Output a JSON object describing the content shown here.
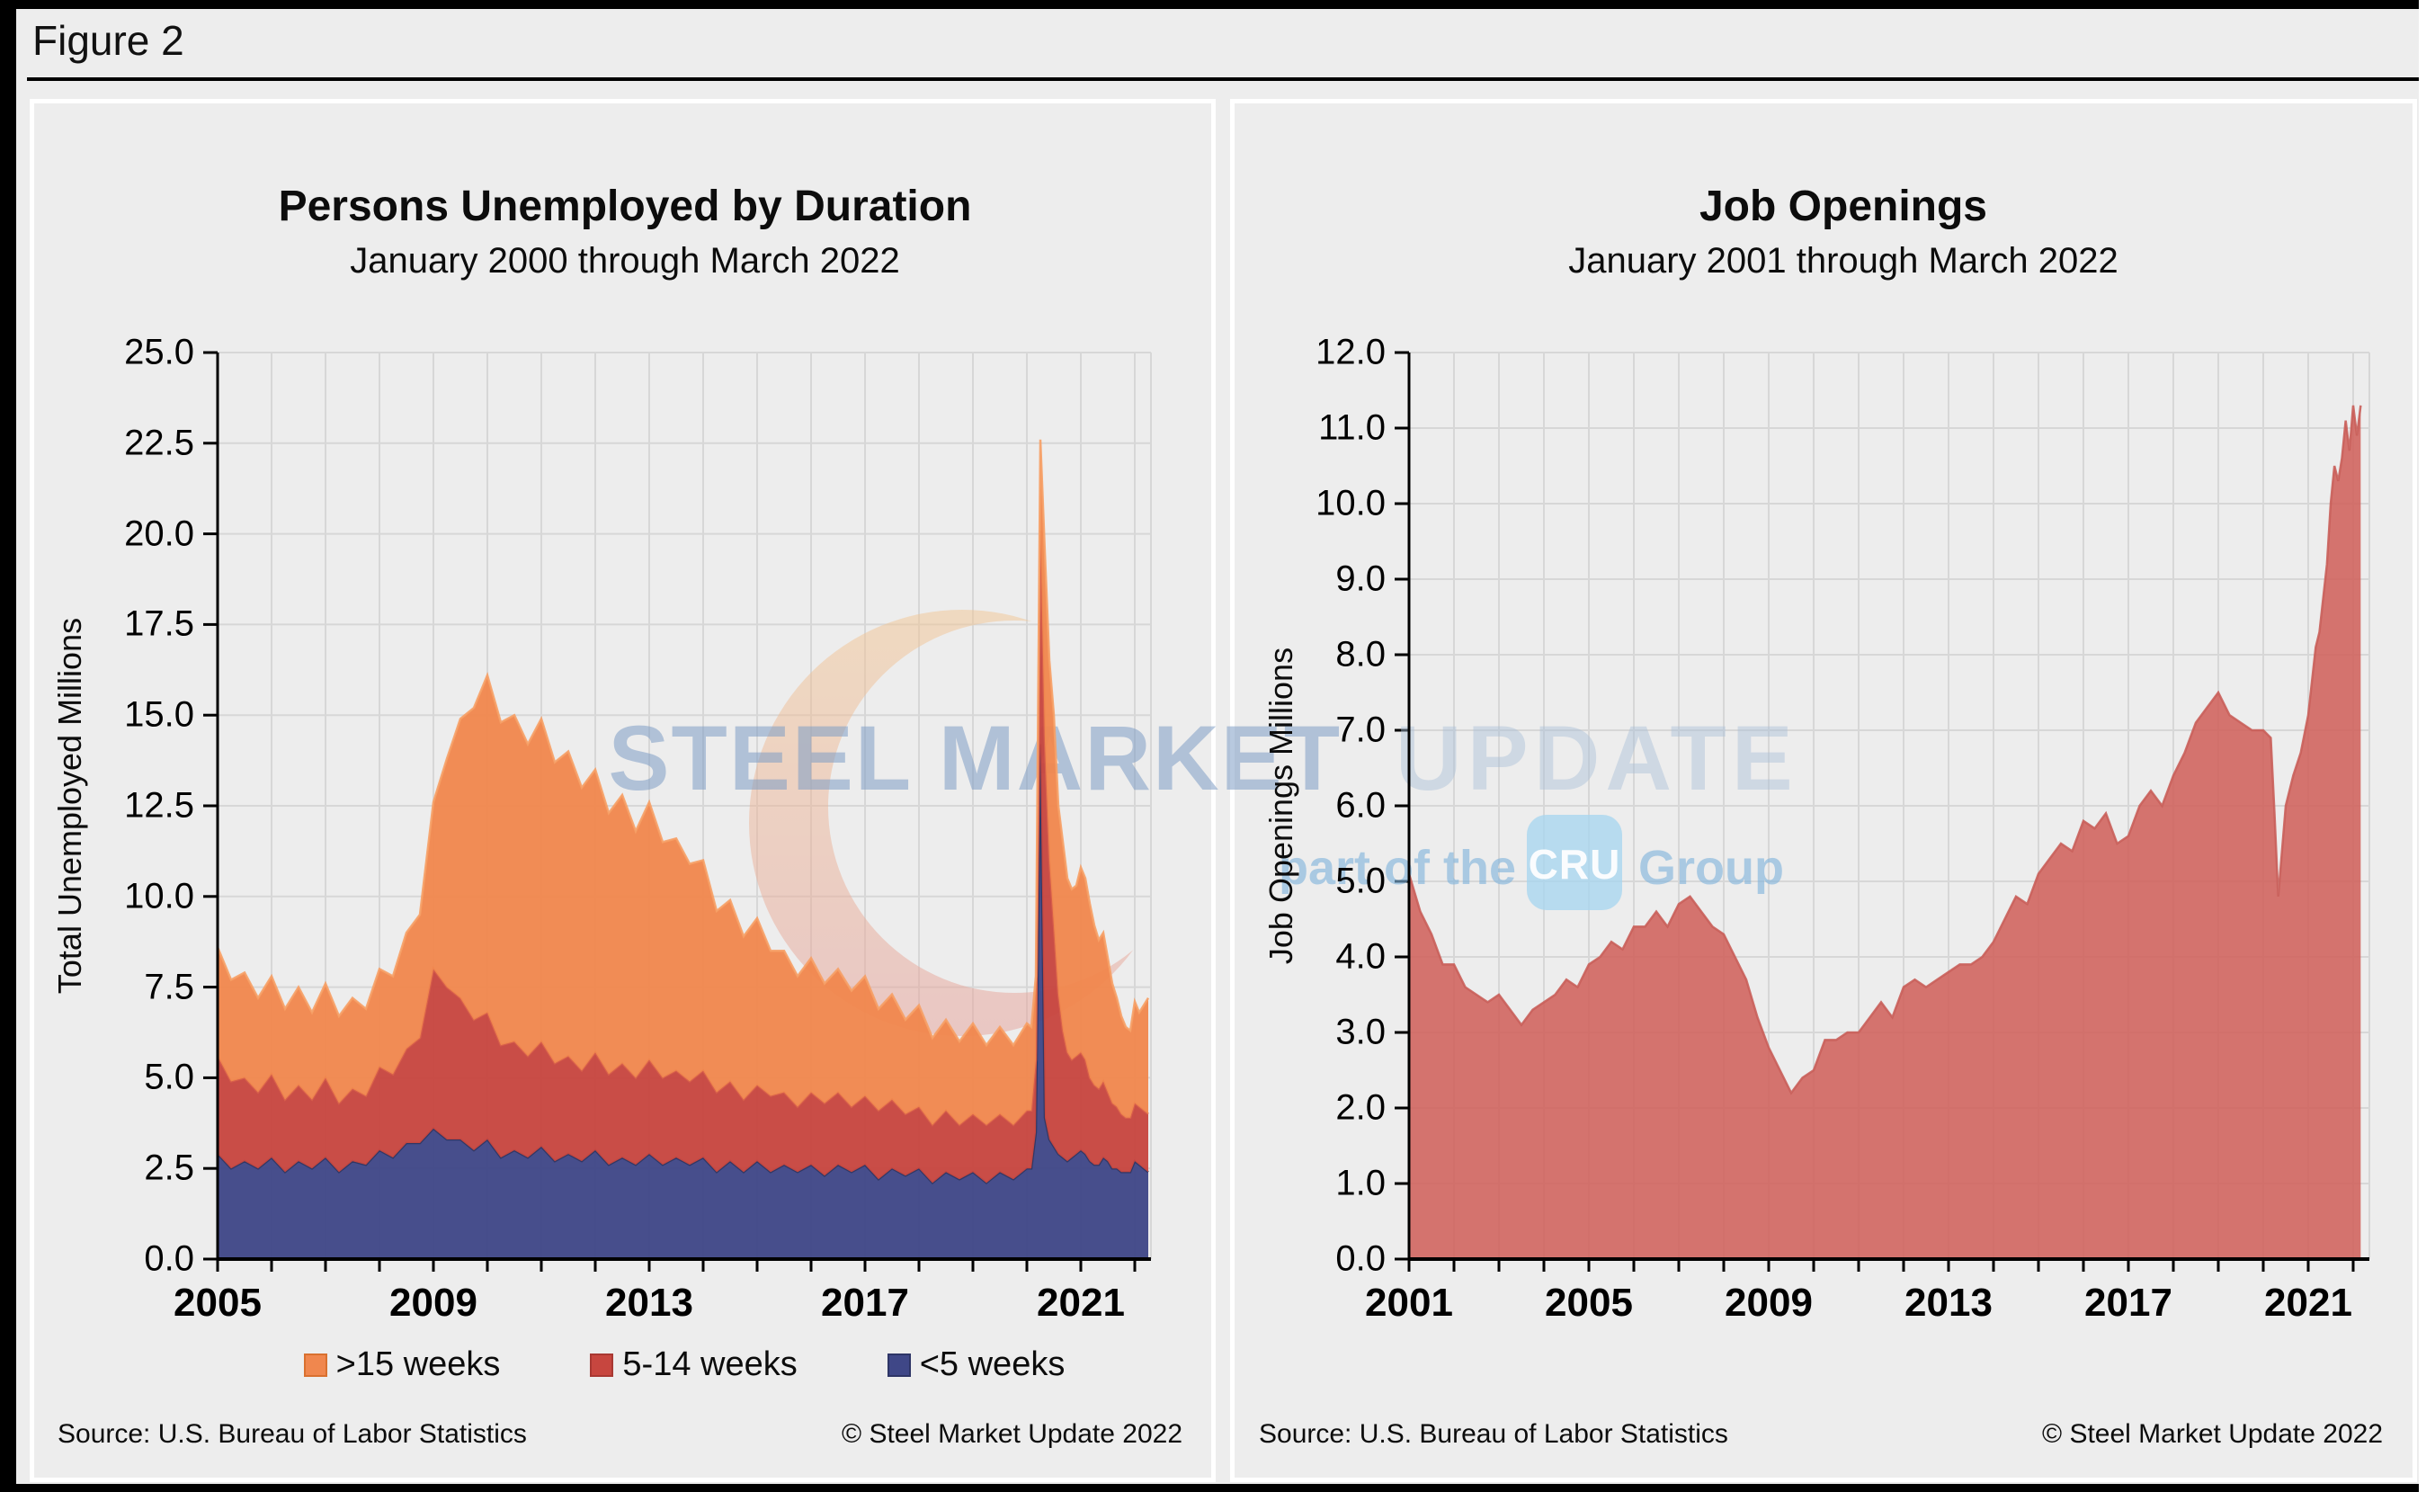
{
  "page": {
    "figure_label": "Figure 2"
  },
  "footer": {
    "source": "Source: U.S. Bureau  of Labor Statistics",
    "copyright": "© Steel Market Update 2022"
  },
  "watermark": {
    "main_strong": "STEEL MARKET",
    "main_light": "UPDATE",
    "tagline_prefix": "part of the",
    "badge": "CRU",
    "tagline_suffix": "Group",
    "main_strong_color": "#7E9CC5",
    "main_light_color": "#A9BED8",
    "tagline_color": "#7FB3DC",
    "badge_color": "#A9D6EF",
    "crescent_top_color": "#F2C795",
    "crescent_bottom_color": "#E7A29B"
  },
  "chart_data": [
    {
      "type": "area",
      "stacked": true,
      "title": "Persons Unemployed by Duration",
      "subtitle": "January 2000 through March 2022",
      "y_axis_title": "Total Unemployed Millions",
      "ylim": [
        0,
        25
      ],
      "y_tick_step": 2.5,
      "y_tick_labels": [
        "0.0",
        "2.5",
        "5.0",
        "7.5",
        "10.0",
        "12.5",
        "15.0",
        "17.5",
        "20.0",
        "22.5",
        "25.0"
      ],
      "x_tick_labels": [
        "2005",
        "2009",
        "2013",
        "2017",
        "2021"
      ],
      "x_tick_years": [
        2005,
        2009,
        2013,
        2017,
        2021
      ],
      "x_range": [
        2005,
        2022.3
      ],
      "grid": true,
      "grid_color": "#D7D7D7",
      "legend_position": "bottom",
      "legend": [
        {
          "label": ">15 weeks",
          "color": "#F0874E",
          "border": "#D9702F"
        },
        {
          "label": "5-14 weeks",
          "color": "#C7463F",
          "border": "#A83832"
        },
        {
          "label": "<5 weeks",
          "color": "#3F4787",
          "border": "#2E3566"
        }
      ],
      "x": [
        2005,
        2005.25,
        2005.5,
        2005.75,
        2006,
        2006.25,
        2006.5,
        2006.75,
        2007,
        2007.25,
        2007.5,
        2007.75,
        2008,
        2008.25,
        2008.5,
        2008.75,
        2009,
        2009.25,
        2009.5,
        2009.75,
        2010,
        2010.25,
        2010.5,
        2010.75,
        2011,
        2011.25,
        2011.5,
        2011.75,
        2012,
        2012.25,
        2012.5,
        2012.75,
        2013,
        2013.25,
        2013.5,
        2013.75,
        2014,
        2014.25,
        2014.5,
        2014.75,
        2015,
        2015.25,
        2015.5,
        2015.75,
        2016,
        2016.25,
        2016.5,
        2016.75,
        2017,
        2017.25,
        2017.5,
        2017.75,
        2018,
        2018.25,
        2018.5,
        2018.75,
        2019,
        2019.25,
        2019.5,
        2019.75,
        2020,
        2020.083,
        2020.167,
        2020.25,
        2020.333,
        2020.417,
        2020.5,
        2020.583,
        2020.667,
        2020.75,
        2020.833,
        2020.917,
        2021,
        2021.083,
        2021.167,
        2021.25,
        2021.333,
        2021.417,
        2021.5,
        2021.583,
        2021.667,
        2021.75,
        2021.833,
        2021.917,
        2022,
        2022.083,
        2022.25
      ],
      "series": [
        {
          "name": "<5 weeks",
          "color": "#3F4787",
          "edge": "#2F3560",
          "values": [
            2.9,
            2.5,
            2.7,
            2.5,
            2.8,
            2.4,
            2.7,
            2.5,
            2.8,
            2.4,
            2.7,
            2.6,
            3.0,
            2.8,
            3.2,
            3.2,
            3.6,
            3.3,
            3.3,
            3.0,
            3.3,
            2.8,
            3.0,
            2.8,
            3.1,
            2.7,
            2.9,
            2.7,
            3.0,
            2.6,
            2.8,
            2.6,
            2.9,
            2.6,
            2.8,
            2.6,
            2.8,
            2.4,
            2.7,
            2.4,
            2.7,
            2.4,
            2.6,
            2.4,
            2.6,
            2.3,
            2.6,
            2.4,
            2.6,
            2.2,
            2.5,
            2.3,
            2.5,
            2.1,
            2.4,
            2.2,
            2.4,
            2.1,
            2.4,
            2.2,
            2.5,
            2.5,
            3.5,
            14.2,
            3.9,
            3.3,
            3.1,
            2.9,
            2.8,
            2.7,
            2.8,
            2.9,
            3.0,
            2.9,
            2.7,
            2.6,
            2.6,
            2.8,
            2.7,
            2.5,
            2.5,
            2.4,
            2.4,
            2.4,
            2.7,
            2.6,
            2.4
          ]
        },
        {
          "name": "5-14 weeks",
          "color": "#C7463F",
          "edge": "#D8604A",
          "values": [
            2.7,
            2.4,
            2.3,
            2.1,
            2.3,
            2.0,
            2.1,
            1.9,
            2.2,
            1.9,
            2.0,
            1.9,
            2.3,
            2.3,
            2.6,
            2.9,
            4.4,
            4.2,
            3.9,
            3.6,
            3.5,
            3.1,
            3.0,
            2.8,
            2.9,
            2.7,
            2.7,
            2.5,
            2.7,
            2.5,
            2.6,
            2.4,
            2.6,
            2.4,
            2.4,
            2.3,
            2.4,
            2.2,
            2.2,
            2.0,
            2.1,
            2.1,
            2.0,
            1.8,
            2.0,
            2.0,
            2.0,
            1.8,
            1.9,
            1.9,
            1.9,
            1.7,
            1.7,
            1.6,
            1.7,
            1.5,
            1.6,
            1.6,
            1.6,
            1.5,
            1.6,
            1.6,
            2.0,
            5.9,
            10.4,
            7.7,
            6.1,
            4.4,
            3.5,
            3.0,
            2.7,
            2.7,
            2.7,
            2.6,
            2.3,
            2.2,
            2.1,
            2.1,
            1.9,
            1.8,
            1.7,
            1.6,
            1.5,
            1.5,
            1.6,
            1.6,
            1.6
          ]
        },
        {
          "name": ">15 weeks",
          "color": "#F0874E",
          "edge": "#F6A066",
          "values": [
            3.0,
            2.8,
            2.9,
            2.6,
            2.7,
            2.5,
            2.7,
            2.4,
            2.6,
            2.4,
            2.5,
            2.4,
            2.7,
            2.7,
            3.2,
            3.4,
            4.6,
            6.3,
            7.7,
            8.6,
            9.3,
            8.9,
            9.0,
            8.6,
            8.9,
            8.3,
            8.4,
            7.8,
            7.8,
            7.2,
            7.4,
            6.8,
            7.1,
            6.5,
            6.4,
            6.0,
            5.8,
            5.0,
            5.0,
            4.5,
            4.6,
            4.0,
            3.9,
            3.6,
            3.7,
            3.3,
            3.4,
            3.2,
            3.3,
            2.8,
            2.9,
            2.6,
            2.8,
            2.4,
            2.5,
            2.3,
            2.5,
            2.2,
            2.4,
            2.2,
            2.4,
            2.3,
            2.3,
            2.5,
            5.2,
            5.5,
            5.8,
            5.2,
            5.2,
            4.8,
            4.7,
            4.7,
            5.1,
            5.0,
            4.8,
            4.4,
            4.1,
            4.1,
            3.7,
            3.3,
            3.0,
            2.7,
            2.5,
            2.4,
            2.8,
            2.6,
            3.2
          ]
        }
      ]
    },
    {
      "type": "area",
      "stacked": false,
      "title": "Job Openings",
      "subtitle": "January 2001 through March 2022",
      "y_axis_title": "Job Openings Millions",
      "ylim": [
        0,
        12
      ],
      "y_tick_step": 1,
      "y_tick_labels": [
        "0.0",
        "1.0",
        "2.0",
        "3.0",
        "4.0",
        "5.0",
        "6.0",
        "7.0",
        "8.0",
        "9.0",
        "10.0",
        "11.0",
        "12.0"
      ],
      "x_tick_labels": [
        "2001",
        "2005",
        "2009",
        "2013",
        "2017",
        "2021"
      ],
      "x_tick_years": [
        2001,
        2005,
        2009,
        2013,
        2017,
        2021
      ],
      "x_range": [
        2001,
        2022.35
      ],
      "grid": true,
      "grid_color": "#D7D7D7",
      "legend": [],
      "x": [
        2001,
        2001.25,
        2001.5,
        2001.75,
        2002,
        2002.25,
        2002.5,
        2002.75,
        2003,
        2003.25,
        2003.5,
        2003.75,
        2004,
        2004.25,
        2004.5,
        2004.75,
        2005,
        2005.25,
        2005.5,
        2005.75,
        2006,
        2006.25,
        2006.5,
        2006.75,
        2007,
        2007.25,
        2007.5,
        2007.75,
        2008,
        2008.25,
        2008.5,
        2008.75,
        2009,
        2009.25,
        2009.5,
        2009.75,
        2010,
        2010.25,
        2010.5,
        2010.75,
        2011,
        2011.25,
        2011.5,
        2011.75,
        2012,
        2012.25,
        2012.5,
        2012.75,
        2013,
        2013.25,
        2013.5,
        2013.75,
        2014,
        2014.25,
        2014.5,
        2014.75,
        2015,
        2015.25,
        2015.5,
        2015.75,
        2016,
        2016.25,
        2016.5,
        2016.75,
        2017,
        2017.25,
        2017.5,
        2017.75,
        2018,
        2018.25,
        2018.5,
        2018.75,
        2019,
        2019.25,
        2019.5,
        2019.75,
        2020,
        2020.167,
        2020.25,
        2020.333,
        2020.5,
        2020.667,
        2020.833,
        2021,
        2021.167,
        2021.25,
        2021.417,
        2021.5,
        2021.583,
        2021.667,
        2021.75,
        2021.833,
        2021.917,
        2022,
        2022.083,
        2022.167
      ],
      "series": [
        {
          "name": "Job Openings",
          "color": "#D0655F",
          "edge": "#C95F5A",
          "values": [
            5.1,
            4.6,
            4.3,
            3.9,
            3.9,
            3.6,
            3.5,
            3.4,
            3.5,
            3.3,
            3.1,
            3.3,
            3.4,
            3.5,
            3.7,
            3.6,
            3.9,
            4.0,
            4.2,
            4.1,
            4.4,
            4.4,
            4.6,
            4.4,
            4.7,
            4.8,
            4.6,
            4.4,
            4.3,
            4.0,
            3.7,
            3.2,
            2.8,
            2.5,
            2.2,
            2.4,
            2.5,
            2.9,
            2.9,
            3.0,
            3.0,
            3.2,
            3.4,
            3.2,
            3.6,
            3.7,
            3.6,
            3.7,
            3.8,
            3.9,
            3.9,
            4.0,
            4.2,
            4.5,
            4.8,
            4.7,
            5.1,
            5.3,
            5.5,
            5.4,
            5.8,
            5.7,
            5.9,
            5.5,
            5.6,
            6.0,
            6.2,
            6.0,
            6.4,
            6.7,
            7.1,
            7.3,
            7.5,
            7.2,
            7.1,
            7.0,
            7.0,
            6.9,
            5.9,
            4.8,
            6.0,
            6.4,
            6.7,
            7.2,
            8.1,
            8.3,
            9.2,
            10.0,
            10.5,
            10.3,
            10.6,
            11.1,
            10.7,
            11.3,
            10.9,
            11.3
          ]
        }
      ]
    }
  ]
}
